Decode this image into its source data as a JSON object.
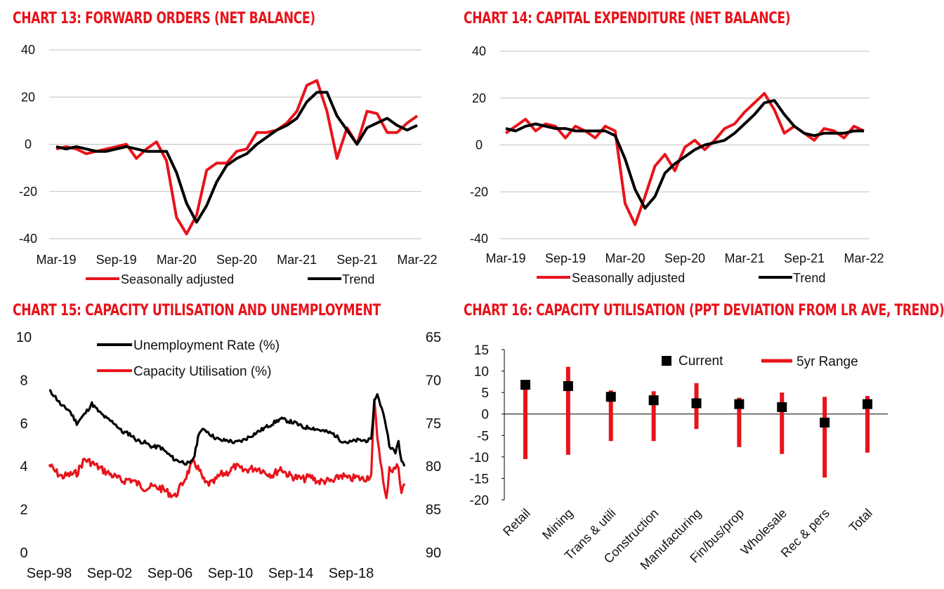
{
  "colors": {
    "red": "#e8131b",
    "black": "#000000",
    "grid": "#bfbfbf",
    "title": "#e8131b"
  },
  "chart_data": [
    {
      "id": "chart13",
      "type": "line",
      "title": "CHART 13: FORWARD ORDERS (NET BALANCE)",
      "yticks": [
        "40",
        "20",
        "0",
        "-20",
        "-40"
      ],
      "ylim": [
        -40,
        40
      ],
      "xticks": [
        "Mar-19",
        "Sep-19",
        "Mar-20",
        "Sep-20",
        "Mar-21",
        "Sep-21",
        "Mar-22"
      ],
      "x_months": [
        0,
        1,
        2,
        3,
        4,
        5,
        6,
        7,
        8,
        9,
        10,
        11,
        12,
        13,
        14,
        15,
        16,
        17,
        18,
        19,
        20,
        21,
        22,
        23,
        24,
        25,
        26,
        27,
        28,
        29,
        30,
        31,
        32,
        33,
        34,
        35,
        36
      ],
      "legend": [
        "Seasonally adjusted",
        "Trend"
      ],
      "series": [
        {
          "name": "Seasonally adjusted",
          "color": "#e8131b",
          "values": [
            -2,
            -1,
            -2,
            -4,
            -3,
            -2,
            -1,
            0,
            -6,
            -2,
            1,
            -7,
            -31,
            -38,
            -30,
            -11,
            -8,
            -8,
            -3,
            -2,
            5,
            5,
            6,
            9,
            14,
            25,
            27,
            14,
            -6,
            7,
            0,
            14,
            13,
            5,
            5,
            9,
            12
          ]
        },
        {
          "name": "Trend",
          "color": "#000000",
          "values": [
            -1,
            -2,
            -1,
            -2,
            -3,
            -3,
            -2,
            -1,
            -2,
            -3,
            -3,
            -3,
            -12,
            -25,
            -33,
            -26,
            -16,
            -9,
            -6,
            -4,
            0,
            3,
            6,
            8,
            11,
            18,
            22,
            22,
            12,
            6,
            0,
            7,
            9,
            11,
            8,
            6,
            8
          ]
        }
      ]
    },
    {
      "id": "chart14",
      "type": "line",
      "title": "CHART 14: CAPITAL EXPENDITURE (NET BALANCE)",
      "yticks": [
        "40",
        "20",
        "0",
        "-20",
        "-40"
      ],
      "ylim": [
        -40,
        40
      ],
      "xticks": [
        "Mar-19",
        "Sep-19",
        "Mar-20",
        "Sep-20",
        "Mar-21",
        "Sep-21",
        "Mar-22"
      ],
      "x_months": [
        0,
        1,
        2,
        3,
        4,
        5,
        6,
        7,
        8,
        9,
        10,
        11,
        12,
        13,
        14,
        15,
        16,
        17,
        18,
        19,
        20,
        21,
        22,
        23,
        24,
        25,
        26,
        27,
        28,
        29,
        30,
        31,
        32,
        33,
        34,
        35,
        36
      ],
      "legend": [
        "Seasonally adjusted",
        "Trend"
      ],
      "series": [
        {
          "name": "Seasonally adjusted",
          "color": "#e8131b",
          "values": [
            5,
            8,
            11,
            6,
            9,
            8,
            3,
            8,
            6,
            3,
            8,
            6,
            -25,
            -34,
            -22,
            -9,
            -4,
            -11,
            -1,
            2,
            -2,
            2,
            7,
            9,
            14,
            18,
            22,
            15,
            5,
            8,
            5,
            2,
            7,
            6,
            3,
            8,
            6
          ]
        },
        {
          "name": "Trend",
          "color": "#000000",
          "values": [
            7,
            6,
            8,
            9,
            8,
            7,
            7,
            6,
            6,
            6,
            6,
            4,
            -6,
            -19,
            -27,
            -22,
            -12,
            -8,
            -5,
            -2,
            0,
            1,
            2,
            5,
            9,
            13,
            18,
            19,
            13,
            8,
            5,
            4,
            5,
            5,
            5,
            6,
            6
          ]
        }
      ]
    },
    {
      "id": "chart15",
      "type": "line",
      "title": "CHART 15: CAPACITY UTILISATION AND UNEMPLOYMENT",
      "yticks_left": [
        "10",
        "8",
        "6",
        "4",
        "2",
        "0"
      ],
      "ylim_left": [
        0,
        10
      ],
      "yticks_right": [
        "65",
        "70",
        "75",
        "80",
        "85",
        "90"
      ],
      "ylim_right": [
        65,
        90
      ],
      "right_axis_inverted": true,
      "xticks": [
        "Sep-98",
        "Sep-02",
        "Sep-06",
        "Sep-10",
        "Sep-14",
        "Sep-18"
      ],
      "x_years": [
        1998.67,
        1999,
        1999.5,
        2000,
        2000.5,
        2001,
        2001.5,
        2002,
        2002.5,
        2003,
        2003.5,
        2004,
        2004.5,
        2005,
        2005.5,
        2006,
        2006.5,
        2007,
        2007.5,
        2008,
        2008.3,
        2008.6,
        2009,
        2009.5,
        2010,
        2010.5,
        2011,
        2011.5,
        2012,
        2012.5,
        2013,
        2013.5,
        2014,
        2014.5,
        2015,
        2015.5,
        2016,
        2016.5,
        2017,
        2017.5,
        2018,
        2018.5,
        2019,
        2019.5,
        2020,
        2020.2,
        2020.4,
        2020.6,
        2020.8,
        2021,
        2021.2,
        2021.4,
        2021.6,
        2021.8,
        2022,
        2022.2
      ],
      "legend": [
        "Unemployment Rate (%)",
        "Capacity Utilisation (%)"
      ],
      "series": [
        {
          "name": "Unemployment Rate (%)",
          "axis": "left",
          "color": "#000000",
          "values": [
            7.5,
            7.3,
            6.8,
            6.6,
            6.0,
            6.4,
            6.9,
            6.5,
            6.2,
            6.0,
            5.6,
            5.5,
            5.2,
            5.1,
            4.9,
            4.9,
            4.6,
            4.3,
            4.2,
            4.1,
            4.5,
            5.6,
            5.7,
            5.4,
            5.2,
            5.2,
            5.1,
            5.2,
            5.4,
            5.6,
            5.8,
            6.0,
            6.2,
            6.1,
            6.0,
            5.8,
            5.8,
            5.7,
            5.6,
            5.5,
            5.2,
            5.1,
            5.2,
            5.2,
            5.2,
            7.0,
            7.4,
            6.8,
            6.5,
            5.8,
            5.0,
            4.8,
            4.6,
            5.2,
            4.2,
            4.0
          ]
        },
        {
          "name": "Capacity Utilisation (%)",
          "axis": "right",
          "color": "#e8131b",
          "values": [
            79.8,
            80.5,
            81.2,
            81.0,
            80.8,
            79.2,
            79.6,
            80.2,
            80.7,
            81.2,
            81.7,
            81.5,
            82.0,
            82.5,
            82.4,
            82.5,
            83.0,
            83.5,
            82.0,
            80.2,
            79.5,
            80.5,
            82.0,
            82.0,
            81.0,
            80.7,
            80.0,
            80.5,
            80.3,
            80.2,
            80.7,
            81.0,
            80.2,
            81.0,
            81.3,
            81.5,
            81.2,
            81.8,
            81.7,
            81.8,
            81.0,
            81.5,
            81.3,
            81.5,
            81.0,
            72.5,
            76.5,
            79.0,
            82.0,
            84.0,
            80.0,
            80.5,
            80.2,
            80.0,
            83.0,
            82.0
          ]
        }
      ]
    },
    {
      "id": "chart16",
      "type": "range",
      "title": "CHART 16: CAPACITY UTILISATION (PPT DEVIATION FROM LR AVE, TREND)",
      "yticks": [
        "15",
        "10",
        "5",
        "0",
        "-5",
        "-10",
        "-15",
        "-20"
      ],
      "ylim": [
        -20,
        15
      ],
      "categories": [
        "Retail",
        "Mining",
        "Trans & utili",
        "Construction",
        "Manufacturing",
        "Fin/bus/prop",
        "Wholesale",
        "Rec & pers",
        "Total"
      ],
      "current": [
        6.8,
        6.5,
        4.0,
        3.2,
        2.5,
        2.3,
        1.6,
        -2.0,
        2.3
      ],
      "range_high": [
        6.5,
        11.0,
        5.5,
        5.3,
        7.2,
        3.8,
        5.0,
        4.0,
        4.2
      ],
      "range_low": [
        -10.5,
        -9.5,
        -6.3,
        -6.3,
        -3.5,
        -7.7,
        -9.3,
        -14.8,
        -9.0
      ],
      "legend": [
        "Current",
        "5yr Range"
      ]
    }
  ]
}
